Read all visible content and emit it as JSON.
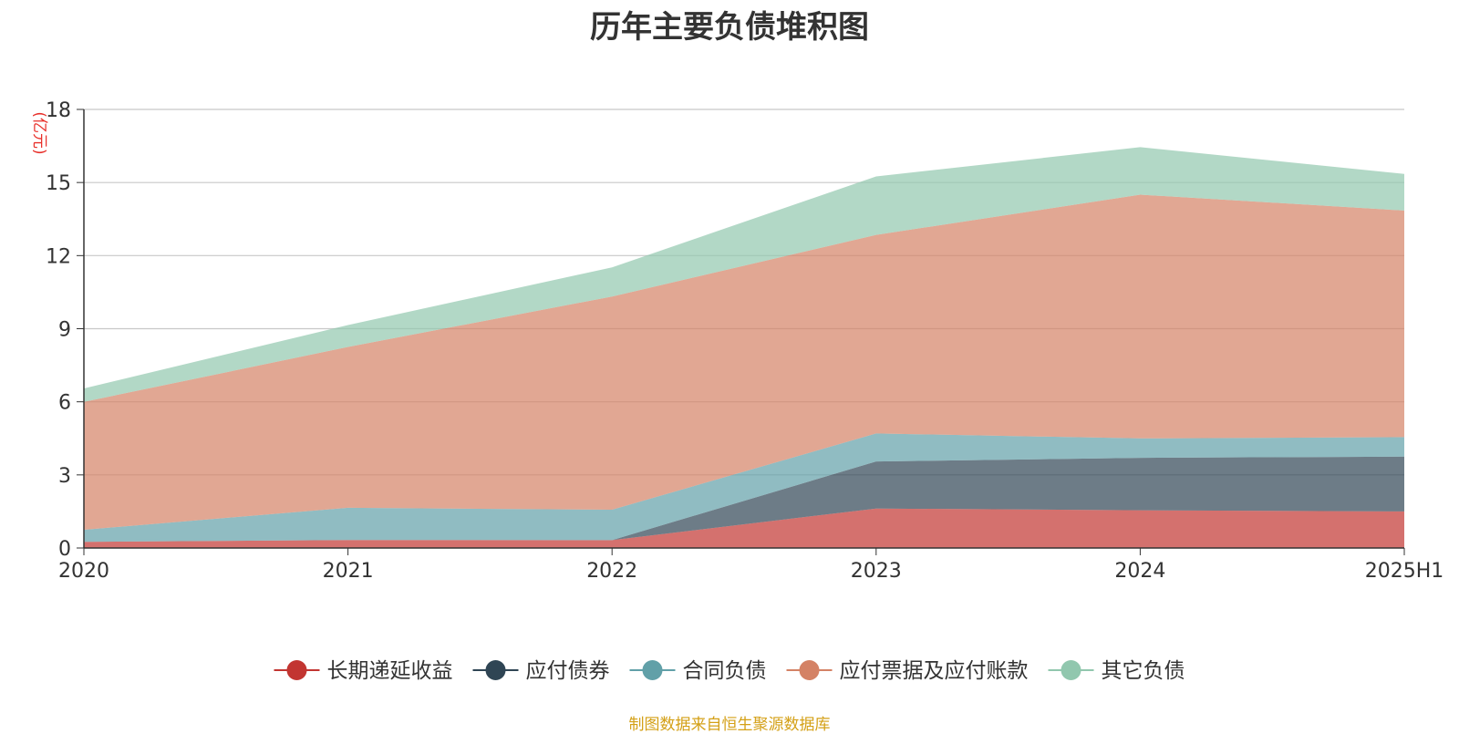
{
  "title": "历年主要负债堆积图",
  "source_note": "制图数据来自恒生聚源数据库",
  "chart_data": {
    "type": "area",
    "stacked": true,
    "title": "历年主要负债堆积图",
    "ylabel": "(亿元)",
    "categories": [
      "2020",
      "2021",
      "2022",
      "2023",
      "2024",
      "2025H1"
    ],
    "ylim": [
      0,
      18
    ],
    "yticks": [
      0,
      3,
      6,
      9,
      12,
      15,
      18
    ],
    "grid": true,
    "legend_position": "bottom",
    "series": [
      {
        "name": "长期递延收益",
        "color": "#c23531",
        "values": [
          0.25,
          0.33,
          0.32,
          1.62,
          1.55,
          1.5
        ]
      },
      {
        "name": "应付债券",
        "color": "#2f4554",
        "values": [
          0,
          0,
          0,
          1.93,
          2.15,
          2.25
        ]
      },
      {
        "name": "合同负债",
        "color": "#61a0a8",
        "values": [
          0.5,
          1.32,
          1.25,
          1.15,
          0.8,
          0.8
        ]
      },
      {
        "name": "应付票据及应付账款",
        "color": "#d48265",
        "values": [
          5.25,
          6.6,
          8.75,
          8.15,
          10.0,
          9.3
        ]
      },
      {
        "name": "其它负债",
        "color": "#91c7ae",
        "values": [
          0.55,
          0.9,
          1.2,
          2.4,
          1.95,
          1.5
        ]
      }
    ]
  }
}
